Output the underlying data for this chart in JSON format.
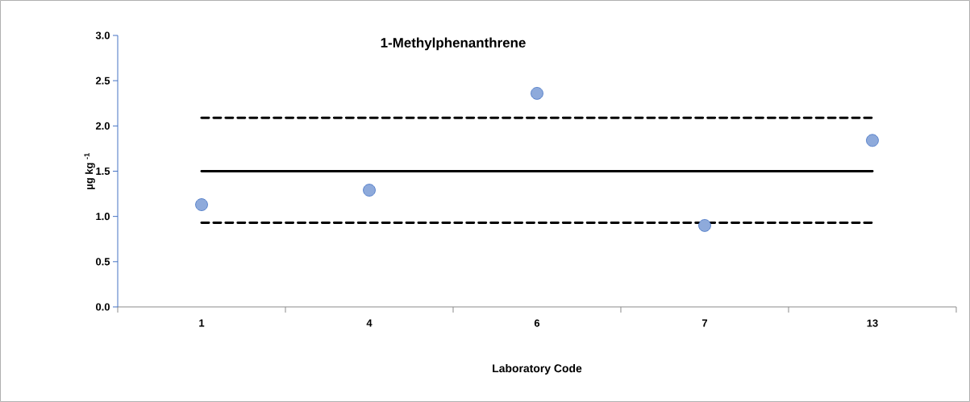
{
  "chart_data": {
    "type": "scatter",
    "title": "1-Methylphenanthrene",
    "xlabel": "Laboratory Code",
    "ylabel": "µg kg $^{-1}$",
    "categories": [
      "1",
      "4",
      "6",
      "7",
      "13"
    ],
    "series": [
      {
        "type": "line",
        "color": "#000000",
        "line_style": "solid",
        "marker": "none",
        "values": [
          1.5,
          1.5,
          1.5,
          1.5,
          1.5
        ]
      },
      {
        "type": "line",
        "color": "#000000",
        "line_style": "dashed",
        "marker": "none",
        "values": [
          2.09,
          2.09,
          2.09,
          2.09,
          2.09
        ]
      },
      {
        "type": "line",
        "color": "#000000",
        "line_style": "dashed",
        "marker": "none",
        "values": [
          0.93,
          0.93,
          0.93,
          0.93,
          0.93
        ]
      },
      {
        "color": "#8eaadb",
        "marker": "circle",
        "values": [
          1.13,
          1.29,
          2.36,
          0.9,
          1.84
        ]
      }
    ],
    "ylim": [
      0,
      3
    ],
    "yticks": [
      {
        "value": 0,
        "label": "0.0"
      },
      {
        "value": 0.5,
        "label": "0.5"
      },
      {
        "value": 1,
        "label": "1.0"
      },
      {
        "value": 1.5,
        "label": "1.5"
      },
      {
        "value": 2,
        "label": "2.0"
      },
      {
        "value": 2.5,
        "label": "2.5"
      },
      {
        "value": 3,
        "label": "3.0"
      }
    ]
  }
}
